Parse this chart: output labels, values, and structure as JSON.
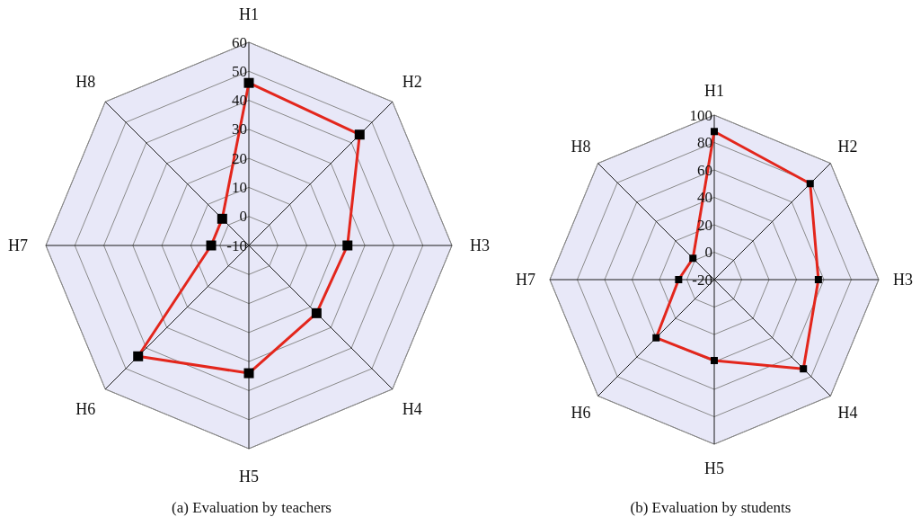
{
  "chart_data": [
    {
      "type": "radar",
      "title": "(a) Evaluation by teachers",
      "categories": [
        "H1",
        "H2",
        "H3",
        "H4",
        "H5",
        "H6",
        "H7",
        "H8"
      ],
      "series": [
        {
          "color": "#e3261c",
          "values": [
            46,
            44,
            24,
            23,
            34,
            44,
            3,
            3
          ]
        }
      ],
      "ylim": [
        -10,
        60
      ],
      "yticks": [
        -10,
        0,
        10,
        20,
        30,
        40,
        50,
        60
      ],
      "grid": true,
      "marker": "square"
    },
    {
      "type": "radar",
      "title": "(b) Evaluation by students",
      "categories": [
        "H1",
        "H2",
        "H3",
        "H4",
        "H5",
        "H6",
        "H7",
        "H8"
      ],
      "series": [
        {
          "color": "#e3261c",
          "values": [
            88,
            79,
            56,
            72,
            39,
            40,
            6,
            2
          ]
        }
      ],
      "ylim": [
        -20,
        100
      ],
      "yticks": [
        -20,
        0,
        20,
        40,
        60,
        80,
        100
      ],
      "grid": true,
      "marker": "square"
    }
  ]
}
